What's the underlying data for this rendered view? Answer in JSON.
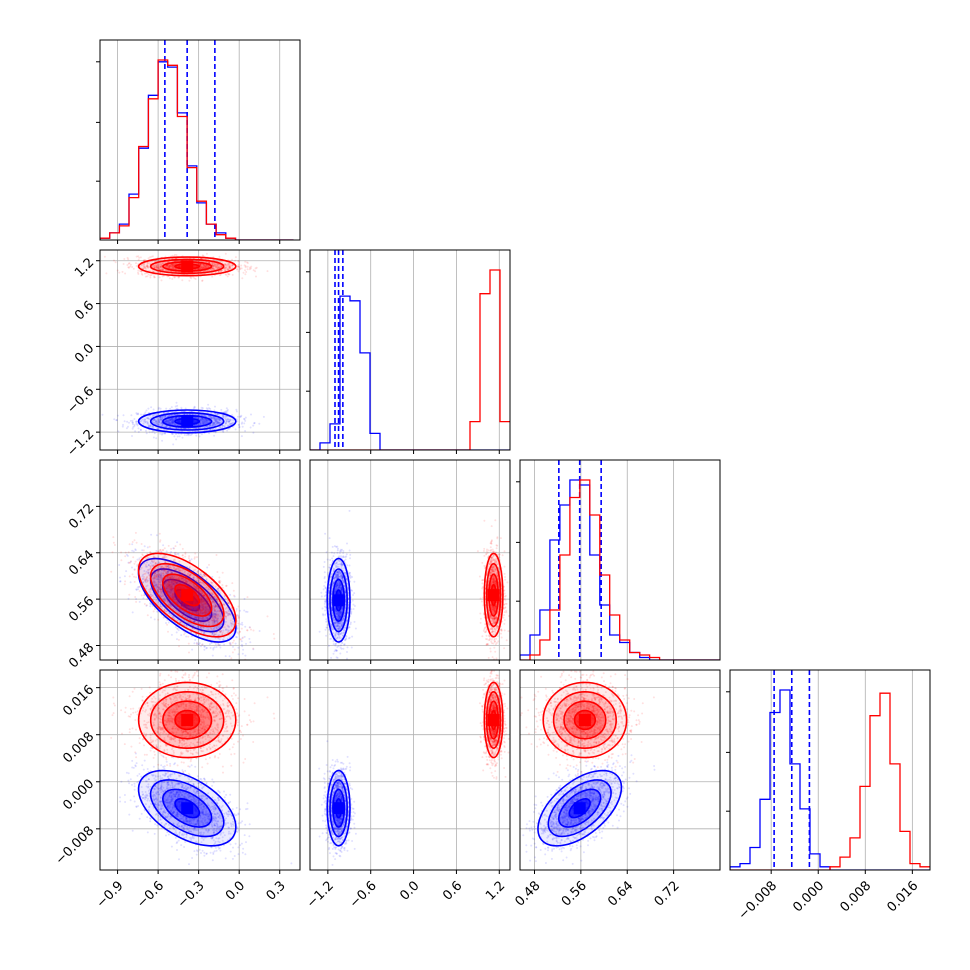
{
  "chart_data": {
    "type": "corner",
    "grid": true,
    "colors": {
      "blue": "#0000ff",
      "red": "#ff0000",
      "grid": "#b0b0b0",
      "axes": "#000000"
    },
    "params": [
      {
        "ticks": [
          -0.9,
          -0.6,
          -0.3,
          0.0,
          0.3
        ],
        "tick_labels": [
          "−0.9",
          "−0.6",
          "−0.3",
          "0.0",
          "0.3"
        ],
        "lim": [
          -1.03,
          0.45
        ]
      },
      {
        "ticks": [
          -1.2,
          -0.6,
          0.0,
          0.6,
          1.2
        ],
        "tick_labels": [
          "−1.2",
          "−0.6",
          "0.0",
          "0.6",
          "1.2"
        ],
        "lim": [
          -1.45,
          1.35
        ]
      },
      {
        "ticks": [
          0.48,
          0.56,
          0.64,
          0.72
        ],
        "tick_labels": [
          "0.48",
          "0.56",
          "0.64",
          "0.72"
        ],
        "lim": [
          0.455,
          0.8
        ]
      },
      {
        "ticks": [
          -0.008,
          0.0,
          0.008,
          0.016
        ],
        "tick_labels": [
          "−0.008",
          "0.000",
          "0.008",
          "0.016"
        ],
        "lim": [
          -0.015,
          0.019
        ]
      }
    ],
    "series": [
      {
        "color": "blue",
        "quantiles": [
          [
            -0.55,
            -0.385,
            -0.18
          ],
          [
            -1.1,
            -1.05,
            -0.99
          ],
          [
            0.522,
            0.558,
            0.595
          ],
          [
            -0.0075,
            -0.0045,
            -0.0015
          ]
        ],
        "hist": [
          {
            "start": -1.03,
            "step": 0.0716,
            "counts": [
              1,
              4,
              9,
              26,
              52,
              82,
              101,
              98,
              72,
              42,
              21,
              9,
              4,
              1,
              0,
              0,
              0,
              0,
              0,
              0
            ]
          },
          {
            "start": -1.45,
            "step": 0.14,
            "counts": [
              0,
              3,
              11,
              65,
              63,
              41,
              7,
              0,
              0,
              0,
              0,
              0,
              0,
              0,
              0,
              0,
              0,
              0,
              0,
              0
            ]
          },
          {
            "start": 0.455,
            "step": 0.0172,
            "counts": [
              2,
              10,
              20,
              48,
              62,
              72,
              70,
              42,
              22,
              10,
              7,
              3,
              1,
              0,
              0,
              0,
              0,
              0,
              0,
              0
            ]
          },
          {
            "start": -0.015,
            "step": 0.0017,
            "counts": [
              1,
              2,
              7,
              22,
              49,
              56,
              33,
              19,
              5,
              1,
              0,
              0,
              0,
              0,
              0,
              0,
              0,
              0,
              0,
              0
            ]
          }
        ],
        "gauss": [
          {
            "mean": -0.385,
            "sd": 0.18
          },
          {
            "mean": -1.05,
            "sd": 0.08
          },
          {
            "mean": 0.558,
            "sd": 0.036
          },
          {
            "mean": -0.0045,
            "sd": 0.0032
          }
        ],
        "corr": [
          [
            0,
            1
          ],
          [
            0,
            0,
            1
          ],
          [
            0,
            0,
            0,
            1
          ]
        ],
        "corr_pairs": {
          "2-0": -0.65,
          "3-0": -0.5,
          "3-2": 0.55
        }
      },
      {
        "color": "red",
        "hist": [
          {
            "start": -1.03,
            "step": 0.0716,
            "counts": [
              1,
              4,
              8,
              24,
              53,
              80,
              102,
              99,
              70,
              41,
              22,
              9,
              3,
              1,
              0,
              0,
              0,
              0,
              0,
              0
            ]
          },
          {
            "start": -1.45,
            "step": 0.14,
            "counts": [
              0,
              0,
              0,
              0,
              0,
              0,
              0,
              0,
              0,
              0,
              0,
              0,
              0,
              0,
              0,
              0,
              12,
              66,
              76,
              12
            ]
          },
          {
            "start": 0.455,
            "step": 0.0172,
            "counts": [
              0,
              2,
              8,
              20,
              42,
              65,
              72,
              58,
              34,
              18,
              8,
              3,
              2,
              1,
              0,
              0,
              0,
              0,
              0,
              0
            ]
          },
          {
            "start": -0.015,
            "step": 0.0017,
            "counts": [
              0,
              0,
              0,
              0,
              0,
              0,
              0,
              0,
              0,
              0,
              1,
              4,
              10,
              26,
              48,
              55,
              33,
              12,
              2,
              1
            ]
          }
        ],
        "gauss": [
          {
            "mean": -0.385,
            "sd": 0.18
          },
          {
            "mean": 1.12,
            "sd": 0.065
          },
          {
            "mean": 0.567,
            "sd": 0.036
          },
          {
            "mean": 0.0105,
            "sd": 0.0032
          }
        ],
        "corr_pairs": {
          "2-0": -0.6,
          "3-0": 0.0,
          "3-2": 0.0
        }
      }
    ]
  }
}
